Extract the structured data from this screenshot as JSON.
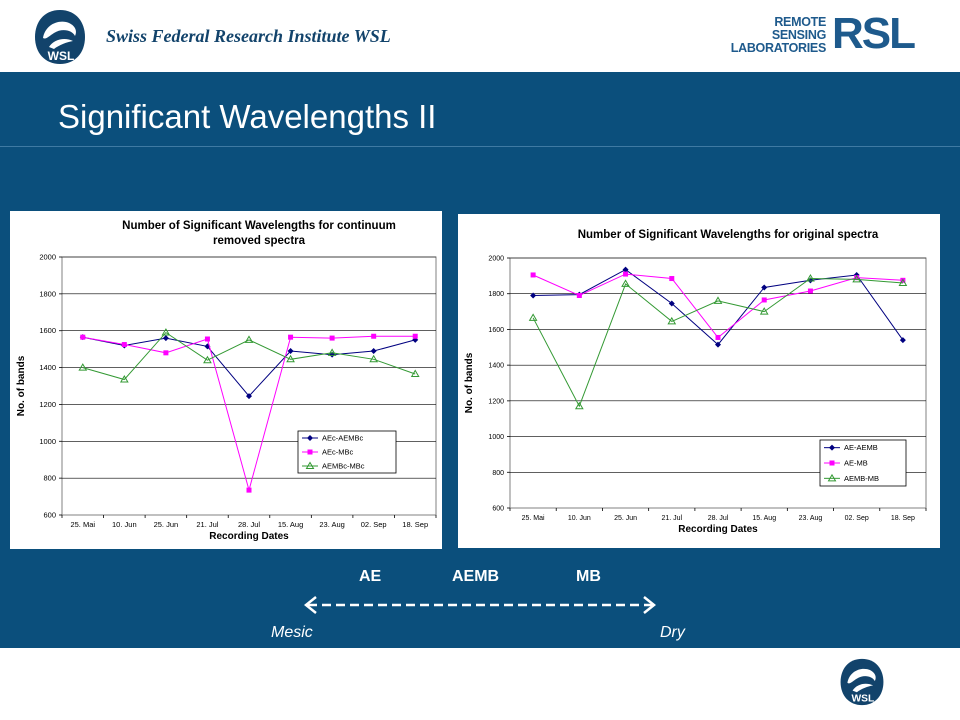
{
  "header": {
    "institute": "Swiss Federal  Research Institute WSL",
    "wsl_logo_text": "WSL",
    "rsl_logo_lines": [
      "REMOTE",
      "SENSING",
      "LABORATORIES"
    ],
    "rsl_logo_big": "RSL"
  },
  "slide": {
    "title": "Significant Wavelengths II"
  },
  "scale": {
    "labels": [
      "AE",
      "AEMB",
      "MB"
    ],
    "left_end": "Mesic",
    "right_end": "Dry"
  },
  "colors": {
    "band": "#0b4f7c",
    "series_1": "#000080",
    "series_2": "#ff00ff",
    "series_3": "#339933"
  },
  "chart_data": [
    {
      "type": "line",
      "title": "Number of Significant Wavelengths for continuum removed spectra",
      "title_lines": [
        "Number of Significant Wavelengths for continuum",
        "removed spectra"
      ],
      "xlabel": "Recording Dates",
      "ylabel": "No. of bands",
      "categories": [
        "25. Mai",
        "10. Jun",
        "25. Jun",
        "21. Jul",
        "28. Jul",
        "15. Aug",
        "23. Aug",
        "02. Sep",
        "18. Sep"
      ],
      "ylim": [
        600,
        2000
      ],
      "yticks": [
        600,
        800,
        1000,
        1200,
        1400,
        1600,
        1800,
        2000
      ],
      "grid": "horizontal",
      "legend": "right",
      "series": [
        {
          "name": "AEc-AEMBc",
          "marker": "diamond",
          "values": [
            1565,
            1520,
            1560,
            1515,
            1245,
            1490,
            1470,
            1490,
            1550
          ]
        },
        {
          "name": "AEc-MBc",
          "marker": "square",
          "values": [
            1565,
            1525,
            1480,
            1555,
            735,
            1565,
            1560,
            1570,
            1570
          ]
        },
        {
          "name": "AEMBc-MBc",
          "marker": "triangle",
          "values": [
            1400,
            1335,
            1590,
            1440,
            1550,
            1445,
            1480,
            1445,
            1365
          ]
        }
      ]
    },
    {
      "type": "line",
      "title": "Number of Significant Wavelengths for original spectra",
      "title_lines": [
        "Number of Significant Wavelengths for original spectra"
      ],
      "xlabel": "Recording Dates",
      "ylabel": "No. of bands",
      "categories": [
        "25. Mai",
        "10. Jun",
        "25. Jun",
        "21. Jul",
        "28. Jul",
        "15. Aug",
        "23. Aug",
        "02. Sep",
        "18. Sep"
      ],
      "ylim": [
        600,
        2000
      ],
      "yticks": [
        600,
        800,
        1000,
        1200,
        1400,
        1600,
        1800,
        2000
      ],
      "grid": "horizontal",
      "legend": "right",
      "series": [
        {
          "name": "AE-AEMB",
          "marker": "diamond",
          "values": [
            1790,
            1795,
            1935,
            1745,
            1515,
            1835,
            1875,
            1905,
            1540
          ]
        },
        {
          "name": "AE-MB",
          "marker": "square",
          "values": [
            1905,
            1790,
            1910,
            1885,
            1555,
            1765,
            1815,
            1890,
            1875
          ]
        },
        {
          "name": "AEMB-MB",
          "marker": "triangle",
          "values": [
            1665,
            1170,
            1855,
            1645,
            1760,
            1700,
            1885,
            1880,
            1860
          ]
        }
      ]
    }
  ]
}
